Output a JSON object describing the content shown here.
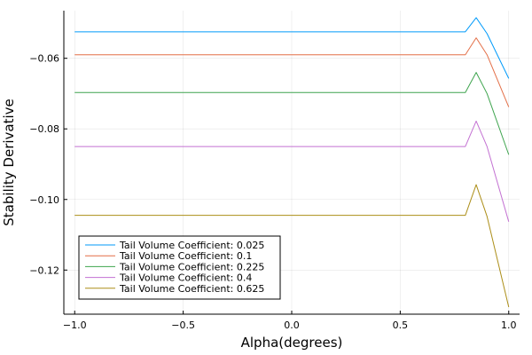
{
  "chart_data": {
    "type": "line",
    "title": "",
    "xlabel": "Alpha(degrees)",
    "ylabel": "Stability Derivative",
    "xlim": [
      -1.05,
      1.05
    ],
    "ylim": [
      -0.1325,
      -0.0465
    ],
    "xticks": [
      -1.0,
      -0.5,
      0.0,
      0.5,
      1.0
    ],
    "xtick_labels": [
      "−1.0",
      "−0.5",
      "0.0",
      "0.5",
      "1.0"
    ],
    "yticks": [
      -0.12,
      -0.1,
      -0.08,
      -0.06
    ],
    "ytick_labels": [
      "−0.12",
      "−0.10",
      "−0.08",
      "−0.06"
    ],
    "grid": true,
    "legend_position": "bottom-left",
    "x": [
      -1.0,
      0.8,
      0.85,
      0.9,
      1.0
    ],
    "series": [
      {
        "name": "Tail Volume Coefficient: 0.025",
        "color": "#009AFA",
        "values": [
          -0.0525,
          -0.0525,
          -0.0485,
          -0.053,
          -0.0657
        ]
      },
      {
        "name": "Tail Volume Coefficient: 0.1",
        "color": "#E36F47",
        "values": [
          -0.059,
          -0.059,
          -0.0542,
          -0.059,
          -0.0738
        ]
      },
      {
        "name": "Tail Volume Coefficient: 0.225",
        "color": "#3EA44E",
        "values": [
          -0.0697,
          -0.0697,
          -0.064,
          -0.07,
          -0.0873
        ]
      },
      {
        "name": "Tail Volume Coefficient: 0.4",
        "color": "#C371D2",
        "values": [
          -0.085,
          -0.085,
          -0.0778,
          -0.085,
          -0.1063
        ]
      },
      {
        "name": "Tail Volume Coefficient: 0.625",
        "color": "#AC8E18",
        "values": [
          -0.1045,
          -0.1045,
          -0.0958,
          -0.1048,
          -0.1305
        ]
      }
    ]
  }
}
